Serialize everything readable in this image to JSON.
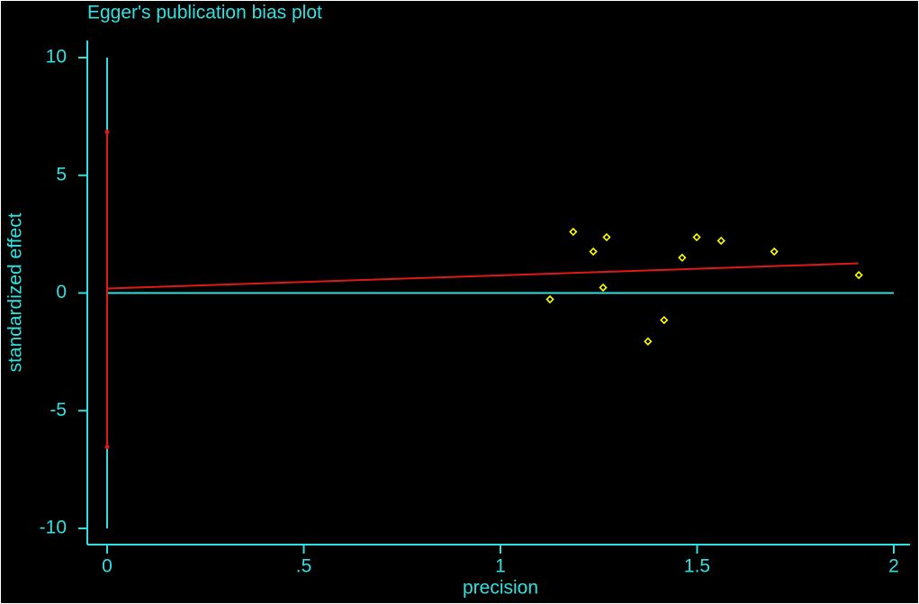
{
  "chart_data": {
    "type": "scatter",
    "title": "Egger's publication bias plot",
    "x_label": "precision",
    "y_label": "standardized effect",
    "xlim": [
      0,
      2
    ],
    "ylim": [
      -10,
      10
    ],
    "xticks": [
      0,
      {
        "value": 0.5,
        "label": ".5"
      },
      1,
      1.5,
      2
    ],
    "yticks": [
      10,
      5,
      0,
      -5,
      -10
    ],
    "axis_color": "#33e0e0",
    "points": {
      "color": "#ffff00",
      "x": [
        1.126,
        1.185,
        1.236,
        1.27,
        1.261,
        1.375,
        1.416,
        1.462,
        1.499,
        1.561,
        1.696,
        1.911
      ],
      "y": [
        -0.27,
        2.6,
        1.76,
        2.37,
        0.23,
        -2.06,
        -1.15,
        1.5,
        2.37,
        2.22,
        1.76,
        0.76
      ]
    },
    "fit": {
      "color": "#e01818",
      "x": [
        0,
        1.91
      ],
      "y": [
        0.19,
        1.26
      ]
    },
    "intercept_ci": {
      "color": "#e01818",
      "x": 0,
      "low": -6.54,
      "high": 6.84
    }
  }
}
